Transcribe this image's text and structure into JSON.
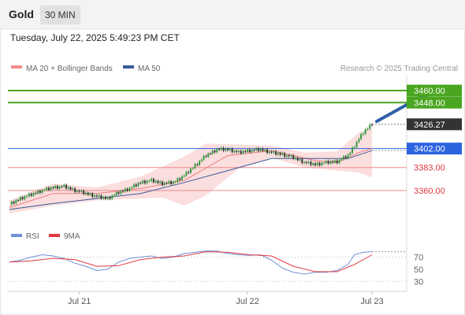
{
  "header": {
    "title": "Gold",
    "timeframe": "30 MIN"
  },
  "datetime": "Tuesday, July 22, 2025 5:49:23 PM CET",
  "legend": {
    "ma20": "MA 20 + Bollinger Bands",
    "ma50": "MA 50",
    "credit": "Research © 2025 Trading Central"
  },
  "rsi_legend": {
    "rsi": "RSI",
    "ma9": "9MA"
  },
  "colors": {
    "green": "#4aa520",
    "blue": "#2c64e0",
    "red": "#e0393e",
    "dark": "#333333",
    "bband": "#f9d3d3",
    "ma50": "#3a5a9a",
    "arrow": "#2f5fa8"
  },
  "chart_data": {
    "type": "candlestick",
    "x_ticks": [
      "Jul 21",
      "Jul 22",
      "Jul 23"
    ],
    "ylim": [
      3330,
      3475
    ],
    "levels": [
      {
        "value": 3460.0,
        "label": "3460.00",
        "style": "green"
      },
      {
        "value": 3448.0,
        "label": "3448.00",
        "style": "green"
      },
      {
        "value": 3426.27,
        "label": "3426.27",
        "style": "current"
      },
      {
        "value": 3402.0,
        "label": "3402.00",
        "style": "blue"
      },
      {
        "value": 3383.0,
        "label": "3383.00",
        "style": "red"
      },
      {
        "value": 3360.0,
        "label": "3360.00",
        "style": "red"
      }
    ],
    "price_path": [
      [
        0,
        3346
      ],
      [
        5,
        3352
      ],
      [
        10,
        3356
      ],
      [
        15,
        3360
      ],
      [
        20,
        3363
      ],
      [
        25,
        3364
      ],
      [
        30,
        3360
      ],
      [
        35,
        3357
      ],
      [
        40,
        3354
      ],
      [
        45,
        3352
      ],
      [
        50,
        3358
      ],
      [
        55,
        3362
      ],
      [
        60,
        3368
      ],
      [
        65,
        3370
      ],
      [
        70,
        3367
      ],
      [
        75,
        3368
      ],
      [
        80,
        3375
      ],
      [
        85,
        3385
      ],
      [
        90,
        3395
      ],
      [
        95,
        3401
      ],
      [
        100,
        3401
      ],
      [
        105,
        3398
      ],
      [
        110,
        3400
      ],
      [
        115,
        3401
      ],
      [
        120,
        3398
      ],
      [
        125,
        3396
      ],
      [
        130,
        3393
      ],
      [
        135,
        3388
      ],
      [
        140,
        3386
      ],
      [
        145,
        3388
      ],
      [
        150,
        3389
      ],
      [
        155,
        3395
      ],
      [
        158,
        3405
      ],
      [
        162,
        3418
      ],
      [
        166,
        3427
      ]
    ],
    "ma20": [
      [
        0,
        3343
      ],
      [
        20,
        3357
      ],
      [
        40,
        3357
      ],
      [
        60,
        3362
      ],
      [
        80,
        3370
      ],
      [
        100,
        3395
      ],
      [
        120,
        3400
      ],
      [
        140,
        3390
      ],
      [
        150,
        3388
      ],
      [
        160,
        3398
      ],
      [
        166,
        3402
      ]
    ],
    "ma50": [
      [
        0,
        3341
      ],
      [
        20,
        3347
      ],
      [
        40,
        3352
      ],
      [
        60,
        3357
      ],
      [
        80,
        3368
      ],
      [
        100,
        3380
      ],
      [
        120,
        3392
      ],
      [
        140,
        3392
      ],
      [
        155,
        3392
      ],
      [
        166,
        3400
      ]
    ],
    "bollinger_upper": [
      [
        0,
        3350
      ],
      [
        20,
        3367
      ],
      [
        40,
        3363
      ],
      [
        60,
        3374
      ],
      [
        80,
        3394
      ],
      [
        90,
        3407
      ],
      [
        105,
        3406
      ],
      [
        120,
        3405
      ],
      [
        135,
        3398
      ],
      [
        150,
        3399
      ],
      [
        160,
        3418
      ],
      [
        166,
        3424
      ]
    ],
    "bollinger_lower": [
      [
        0,
        3337
      ],
      [
        20,
        3345
      ],
      [
        40,
        3350
      ],
      [
        60,
        3352
      ],
      [
        70,
        3353
      ],
      [
        80,
        3345
      ],
      [
        90,
        3355
      ],
      [
        105,
        3382
      ],
      [
        120,
        3393
      ],
      [
        135,
        3383
      ],
      [
        150,
        3380
      ],
      [
        160,
        3378
      ],
      [
        166,
        3373
      ]
    ],
    "arrow": {
      "from": [
        166,
        3426
      ],
      "to": [
        186,
        3460
      ]
    },
    "rsi": {
      "ticks": [
        70,
        50,
        30
      ],
      "dotted_levels": [
        70,
        30
      ],
      "ylim": [
        20,
        85
      ],
      "rsi_path": [
        [
          0,
          62
        ],
        [
          5,
          65
        ],
        [
          10,
          70
        ],
        [
          15,
          74
        ],
        [
          20,
          72
        ],
        [
          25,
          68
        ],
        [
          30,
          60
        ],
        [
          35,
          55
        ],
        [
          40,
          48
        ],
        [
          45,
          50
        ],
        [
          50,
          62
        ],
        [
          55,
          68
        ],
        [
          60,
          70
        ],
        [
          65,
          72
        ],
        [
          70,
          68
        ],
        [
          75,
          70
        ],
        [
          80,
          76
        ],
        [
          85,
          78
        ],
        [
          90,
          80
        ],
        [
          95,
          80
        ],
        [
          100,
          76
        ],
        [
          105,
          74
        ],
        [
          110,
          73
        ],
        [
          115,
          74
        ],
        [
          120,
          65
        ],
        [
          125,
          52
        ],
        [
          130,
          45
        ],
        [
          135,
          42
        ],
        [
          140,
          45
        ],
        [
          145,
          45
        ],
        [
          150,
          48
        ],
        [
          155,
          58
        ],
        [
          158,
          74
        ],
        [
          162,
          78
        ],
        [
          166,
          79
        ]
      ],
      "ma9_path": [
        [
          0,
          62
        ],
        [
          10,
          64
        ],
        [
          20,
          68
        ],
        [
          30,
          66
        ],
        [
          40,
          55
        ],
        [
          50,
          56
        ],
        [
          60,
          66
        ],
        [
          70,
          70
        ],
        [
          80,
          72
        ],
        [
          90,
          79
        ],
        [
          100,
          78
        ],
        [
          110,
          74
        ],
        [
          120,
          72
        ],
        [
          130,
          55
        ],
        [
          140,
          46
        ],
        [
          150,
          46
        ],
        [
          158,
          58
        ],
        [
          166,
          74
        ]
      ]
    }
  }
}
